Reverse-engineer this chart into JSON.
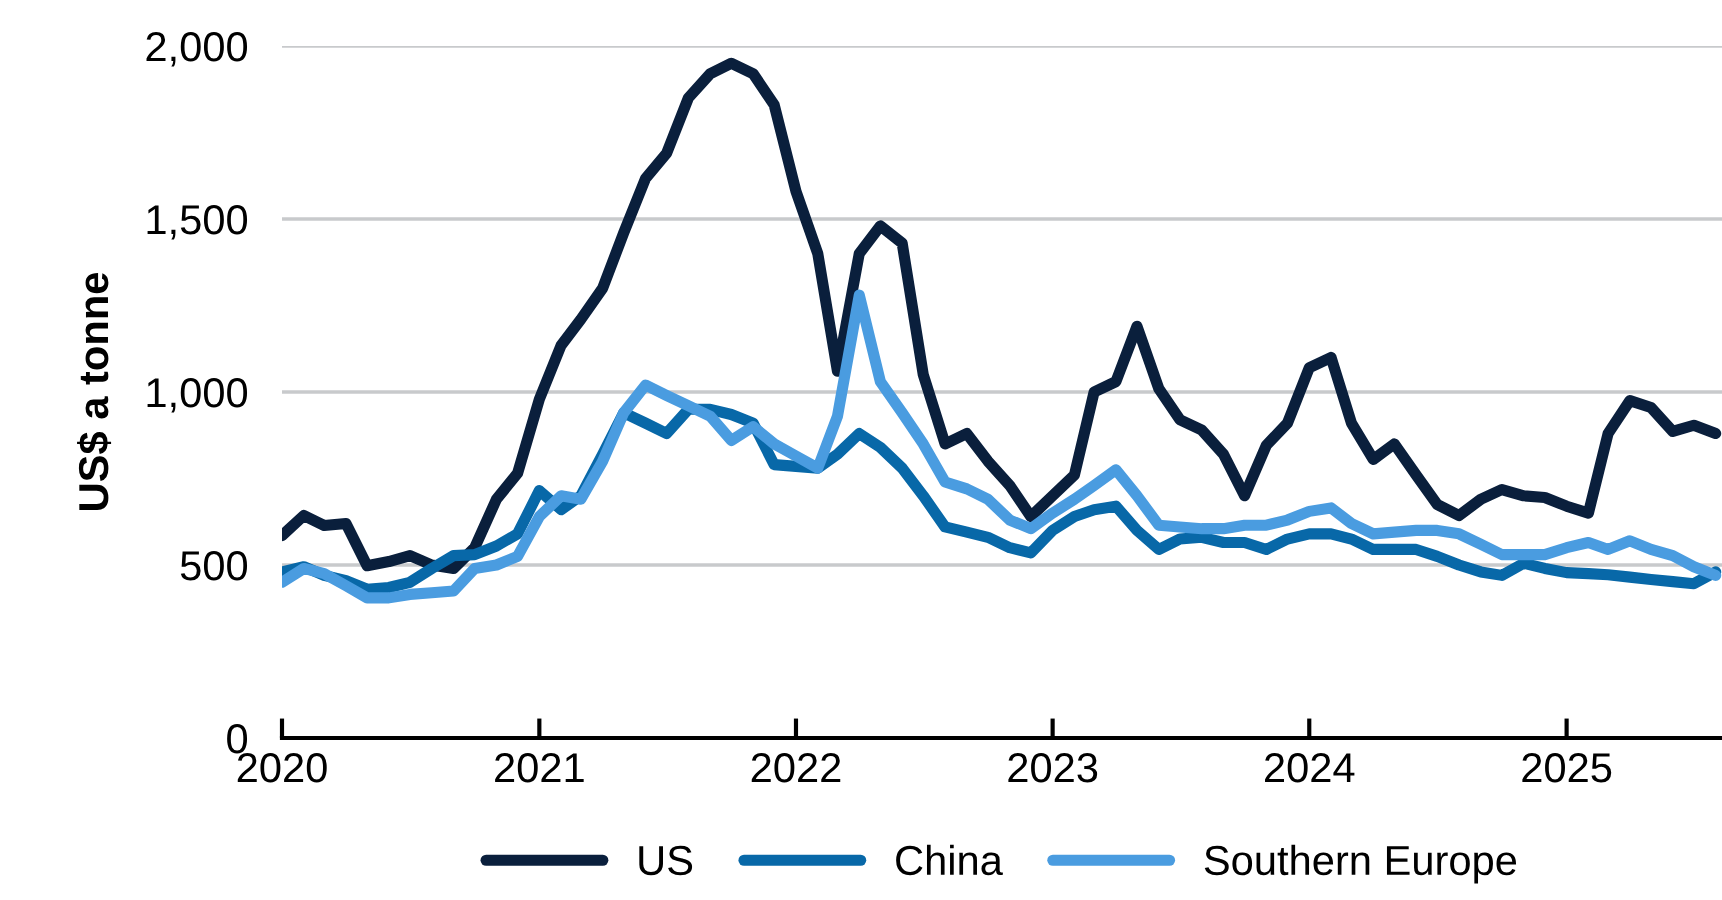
{
  "chart_data": {
    "type": "line",
    "ylabel": "US$ a tonne",
    "x": [
      "2020-01",
      "2020-02",
      "2020-03",
      "2020-04",
      "2020-05",
      "2020-06",
      "2020-07",
      "2020-08",
      "2020-09",
      "2020-10",
      "2020-11",
      "2020-12",
      "2021-01",
      "2021-02",
      "2021-03",
      "2021-04",
      "2021-05",
      "2021-06",
      "2021-07",
      "2021-08",
      "2021-09",
      "2021-10",
      "2021-11",
      "2021-12",
      "2022-01",
      "2022-02",
      "2022-03",
      "2022-04",
      "2022-05",
      "2022-06",
      "2022-07",
      "2022-08",
      "2022-09",
      "2022-10",
      "2022-11",
      "2022-12",
      "2023-01",
      "2023-02",
      "2023-03",
      "2023-04",
      "2023-05",
      "2023-06",
      "2023-07",
      "2023-08",
      "2023-09",
      "2023-10",
      "2023-11",
      "2023-12",
      "2024-01",
      "2024-02",
      "2024-03",
      "2024-04",
      "2024-05",
      "2024-06",
      "2024-07",
      "2024-08",
      "2024-09",
      "2024-10",
      "2024-11",
      "2024-12",
      "2025-01",
      "2025-02",
      "2025-03",
      "2025-04",
      "2025-05",
      "2025-06",
      "2025-07",
      "2025-08"
    ],
    "series": [
      {
        "name": "US",
        "color": "#0a1f3c",
        "values": [
          585,
          643,
          614,
          620,
          498,
          510,
          527,
          500,
          490,
          550,
          690,
          765,
          979,
          1135,
          1210,
          1300,
          1460,
          1617,
          1690,
          1850,
          1920,
          1950,
          1920,
          1830,
          1580,
          1400,
          1060,
          1400,
          1480,
          1430,
          1050,
          850,
          880,
          800,
          730,
          640,
          700,
          760,
          1000,
          1030,
          1190,
          1010,
          920,
          890,
          820,
          700,
          846,
          910,
          1070,
          1100,
          910,
          805,
          850,
          760,
          675,
          643,
          690,
          718,
          700,
          695,
          670,
          650,
          880,
          975,
          955,
          886,
          904,
          880
        ]
      },
      {
        "name": "China",
        "color": "#0868a8",
        "values": [
          480,
          495,
          470,
          455,
          430,
          435,
          450,
          490,
          527,
          530,
          555,
          590,
          715,
          660,
          700,
          820,
          940,
          910,
          880,
          950,
          950,
          935,
          910,
          790,
          785,
          780,
          820,
          880,
          840,
          780,
          700,
          610,
          595,
          580,
          550,
          535,
          600,
          640,
          660,
          670,
          600,
          545,
          575,
          580,
          565,
          565,
          545,
          575,
          590,
          590,
          575,
          545,
          545,
          545,
          525,
          500,
          480,
          470,
          505,
          490,
          478,
          475,
          472,
          465,
          458,
          452,
          446,
          480
        ]
      },
      {
        "name": "Southern Europe",
        "color": "#4a9ce0",
        "values": [
          450,
          490,
          475,
          440,
          405,
          405,
          415,
          420,
          425,
          490,
          500,
          525,
          640,
          700,
          690,
          800,
          940,
          1020,
          990,
          960,
          930,
          860,
          900,
          850,
          815,
          780,
          930,
          1280,
          1030,
          940,
          850,
          740,
          720,
          690,
          630,
          605,
          650,
          690,
          730,
          775,
          700,
          615,
          610,
          605,
          605,
          615,
          615,
          630,
          655,
          665,
          620,
          590,
          595,
          600,
          600,
          590,
          560,
          530,
          530,
          530,
          550,
          565,
          545,
          570,
          545,
          527,
          495,
          470
        ]
      }
    ],
    "xlim": [
      "2020-01-01",
      "2025-08-10"
    ],
    "xticks": [
      {
        "value": "2020-01-01",
        "label": "2020"
      },
      {
        "value": "2021-01-01",
        "label": "2021"
      },
      {
        "value": "2022-01-01",
        "label": "2022"
      },
      {
        "value": "2023-01-01",
        "label": "2023"
      },
      {
        "value": "2024-01-01",
        "label": "2024"
      },
      {
        "value": "2025-01-01",
        "label": "2025"
      }
    ],
    "ylim": [
      0,
      2000
    ],
    "yticks": [
      {
        "value": 0,
        "label": "0"
      },
      {
        "value": 500,
        "label": "500"
      },
      {
        "value": 1000,
        "label": "1,000"
      },
      {
        "value": 1500,
        "label": "1,500"
      },
      {
        "value": 2000,
        "label": "2,000"
      }
    ],
    "grid": "y",
    "legend": "bottom",
    "marker": "none",
    "line_style": "solid"
  }
}
